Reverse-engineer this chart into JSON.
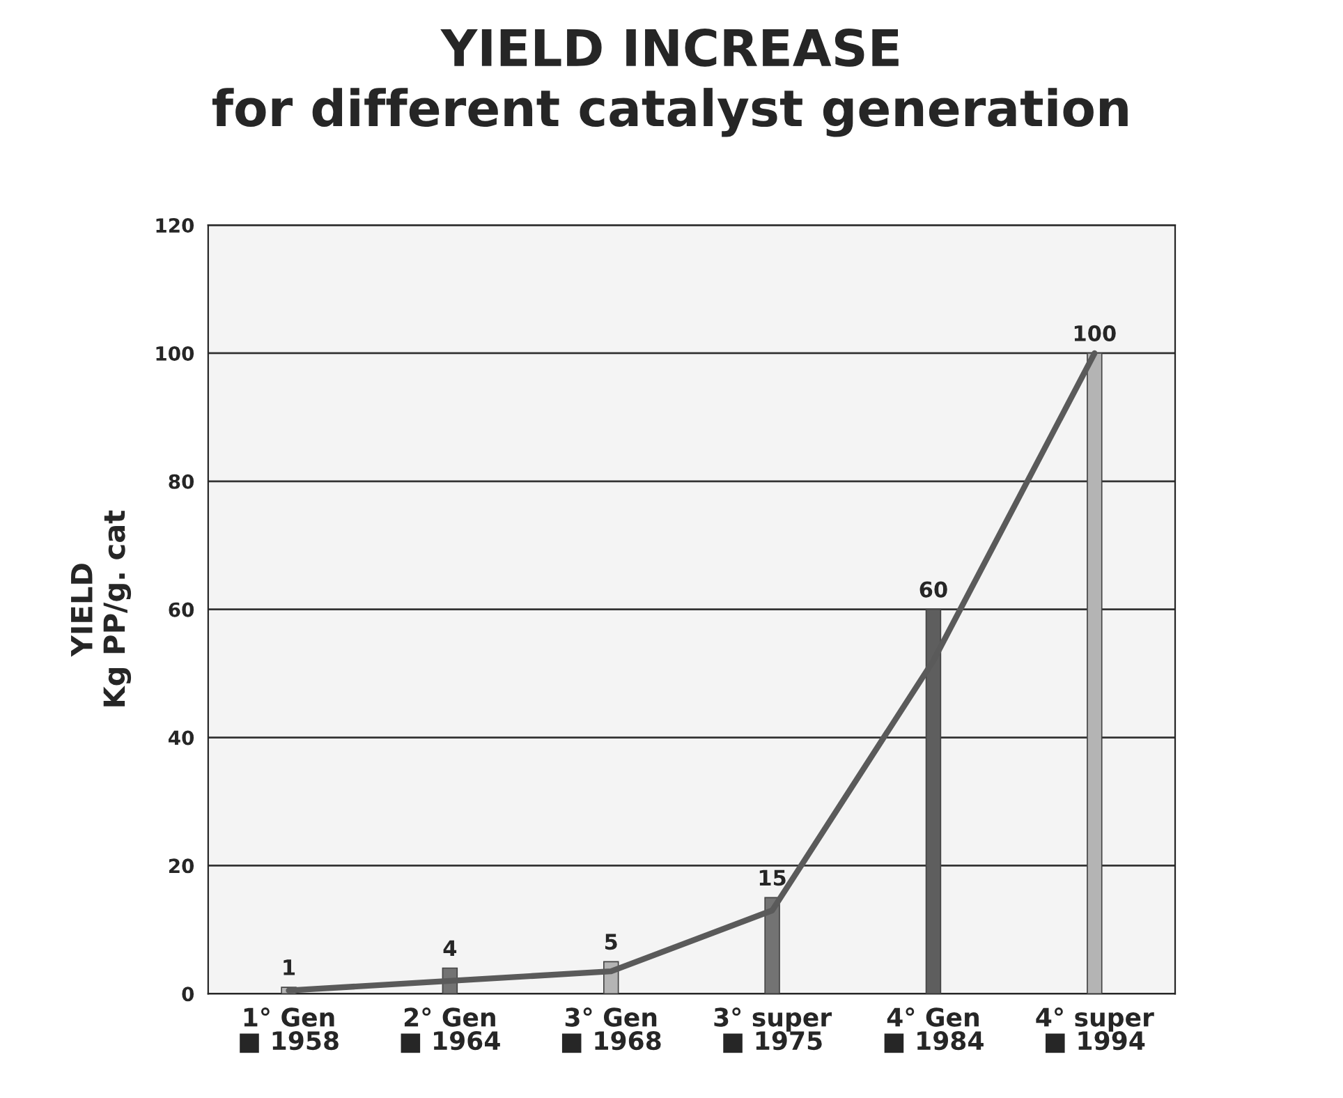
{
  "chart_data": {
    "type": "bar",
    "title": "YIELD INCREASE\nfor different catalyst generation",
    "ylabel": "YIELD\nKg PP/g. cat",
    "categories": [
      "1° Gen\n■ 1958",
      "2° Gen\n■ 1964",
      "3° Gen\n■ 1968",
      "3° super\n■ 1975",
      "4° Gen\n■ 1984",
      "4° super\n■ 1994"
    ],
    "series": [
      {
        "values": [
          1,
          4,
          5,
          15,
          60,
          100
        ],
        "value_labels": [
          "1",
          "4",
          "5",
          "15",
          "60",
          "100"
        ],
        "colors": [
          "#b4b4b4",
          "#737373",
          "#b4b4b4",
          "#737373",
          "#5e5e5e",
          "#b4b4b4"
        ]
      },
      {
        "type": "line",
        "color": "#5a5a5a",
        "values": [
          0.5,
          2,
          3.5,
          13,
          52,
          100
        ]
      }
    ],
    "ylim": [
      0,
      120
    ],
    "yticks": [
      0,
      20,
      40,
      60,
      80,
      100,
      120
    ],
    "grid": "y",
    "legend": false
  }
}
